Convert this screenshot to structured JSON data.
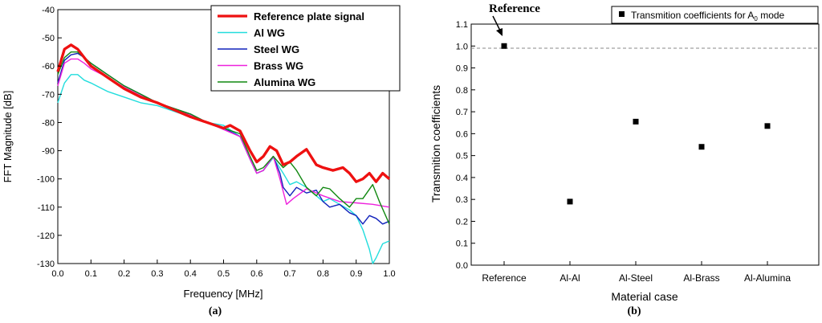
{
  "chart_data": [
    {
      "type": "line",
      "panel_label": "(a)",
      "xlabel": "Frequency [MHz]",
      "ylabel": "FFT Magnitude [dB]",
      "xlim": [
        0.0,
        1.0
      ],
      "ylim": [
        -130,
        -40
      ],
      "xticks": [
        "0.0",
        "0.1",
        "0.2",
        "0.3",
        "0.4",
        "0.5",
        "0.6",
        "0.7",
        "0.8",
        "0.9",
        "1.0"
      ],
      "yticks": [
        "-40",
        "-50",
        "-60",
        "-70",
        "-80",
        "-90",
        "-100",
        "-110",
        "-120",
        "-130"
      ],
      "legend_position": "top-right",
      "series": [
        {
          "name": "Reference plate signal",
          "color": "#ee1111",
          "x": [
            0.0,
            0.02,
            0.04,
            0.06,
            0.08,
            0.1,
            0.15,
            0.2,
            0.25,
            0.3,
            0.35,
            0.4,
            0.45,
            0.5,
            0.52,
            0.55,
            0.58,
            0.6,
            0.62,
            0.64,
            0.66,
            0.68,
            0.7,
            0.72,
            0.75,
            0.78,
            0.8,
            0.83,
            0.86,
            0.88,
            0.9,
            0.92,
            0.94,
            0.96,
            0.98,
            1.0
          ],
          "values": [
            -62,
            -54,
            -52.5,
            -54,
            -57,
            -60,
            -64,
            -68,
            -71,
            -73,
            -75.5,
            -78,
            -80,
            -82,
            -81,
            -83,
            -90,
            -94,
            -92,
            -88.5,
            -90,
            -95,
            -94,
            -92,
            -89.5,
            -95,
            -96,
            -97,
            -96,
            -98,
            -101,
            -100,
            -98,
            -101,
            -98,
            -100
          ]
        },
        {
          "name": "Al WG",
          "color": "#22dddd",
          "x": [
            0.0,
            0.02,
            0.04,
            0.06,
            0.08,
            0.1,
            0.15,
            0.2,
            0.25,
            0.3,
            0.35,
            0.4,
            0.45,
            0.5,
            0.55,
            0.58,
            0.6,
            0.62,
            0.65,
            0.68,
            0.7,
            0.72,
            0.75,
            0.78,
            0.8,
            0.82,
            0.85,
            0.88,
            0.9,
            0.92,
            0.94,
            0.95,
            0.96,
            0.98,
            1.0
          ],
          "values": [
            -73,
            -66,
            -63,
            -63,
            -65,
            -66,
            -69,
            -71,
            -73,
            -74,
            -76,
            -78,
            -80,
            -81,
            -85,
            -93,
            -98,
            -97,
            -92.5,
            -98,
            -102,
            -101,
            -103,
            -106,
            -108,
            -107,
            -109,
            -111,
            -113,
            -118,
            -125,
            -130,
            -128,
            -123,
            -122
          ]
        },
        {
          "name": "Steel WG",
          "color": "#1122bb",
          "x": [
            0.0,
            0.02,
            0.04,
            0.06,
            0.08,
            0.1,
            0.15,
            0.2,
            0.25,
            0.3,
            0.35,
            0.4,
            0.45,
            0.5,
            0.55,
            0.58,
            0.6,
            0.62,
            0.65,
            0.67,
            0.68,
            0.7,
            0.72,
            0.75,
            0.78,
            0.8,
            0.82,
            0.85,
            0.88,
            0.9,
            0.92,
            0.94,
            0.96,
            0.98,
            1.0
          ],
          "values": [
            -66,
            -58,
            -56,
            -55.5,
            -57,
            -59,
            -63,
            -67,
            -70,
            -73,
            -75,
            -77,
            -80,
            -82,
            -85,
            -93,
            -98,
            -97,
            -92,
            -98,
            -103,
            -106,
            -103,
            -105,
            -104,
            -108,
            -110,
            -109,
            -112,
            -113,
            -116,
            -113,
            -114,
            -116,
            -115
          ]
        },
        {
          "name": "Brass WG",
          "color": "#ee22dd",
          "x": [
            0.0,
            0.02,
            0.04,
            0.06,
            0.08,
            0.1,
            0.15,
            0.2,
            0.25,
            0.3,
            0.35,
            0.4,
            0.45,
            0.5,
            0.55,
            0.58,
            0.6,
            0.62,
            0.65,
            0.67,
            0.69,
            0.71,
            0.75,
            0.8,
            0.85,
            0.9,
            0.95,
            1.0
          ],
          "values": [
            -67,
            -59,
            -57.5,
            -57.5,
            -59,
            -61,
            -64,
            -67.5,
            -70.5,
            -73,
            -75,
            -77.5,
            -80,
            -82.5,
            -85,
            -93,
            -98,
            -97,
            -92,
            -100,
            -109,
            -107,
            -103.5,
            -106,
            -108,
            -108.5,
            -109,
            -110
          ]
        },
        {
          "name": "Alumina WG",
          "color": "#118811",
          "x": [
            0.0,
            0.02,
            0.04,
            0.06,
            0.08,
            0.1,
            0.15,
            0.2,
            0.25,
            0.3,
            0.35,
            0.4,
            0.45,
            0.5,
            0.55,
            0.58,
            0.6,
            0.62,
            0.65,
            0.68,
            0.7,
            0.72,
            0.75,
            0.78,
            0.8,
            0.82,
            0.85,
            0.88,
            0.9,
            0.92,
            0.95,
            0.97,
            1.0
          ],
          "values": [
            -63,
            -57,
            -55,
            -55,
            -57,
            -59,
            -63,
            -67,
            -70,
            -73,
            -75,
            -77,
            -80,
            -82,
            -84,
            -92,
            -97,
            -96,
            -92,
            -96,
            -94,
            -97,
            -103,
            -106,
            -103,
            -103.5,
            -107,
            -110,
            -107,
            -107,
            -102,
            -108,
            -116
          ]
        }
      ]
    },
    {
      "type": "scatter",
      "panel_label": "(b)",
      "xlabel": "Material case",
      "ylabel": "Transmition coefficients",
      "ylim": [
        0.0,
        1.1
      ],
      "yticks": [
        "0.0",
        "0.1",
        "0.2",
        "0.3",
        "0.4",
        "0.5",
        "0.6",
        "0.7",
        "0.8",
        "0.9",
        "1.0",
        "1.1"
      ],
      "categories": [
        "Reference",
        "Al-Al",
        "Al-Steel",
        "Al-Brass",
        "Al-Alumina"
      ],
      "series": [
        {
          "name": "Transmition coefficients for A",
          "name_subscript": "0",
          "name_suffix": " mode",
          "color": "#000000",
          "values": [
            1.0,
            0.29,
            0.655,
            0.54,
            0.635
          ]
        }
      ],
      "reference_line": 0.99,
      "annotation": "Reference",
      "legend_position": "top-right"
    }
  ]
}
